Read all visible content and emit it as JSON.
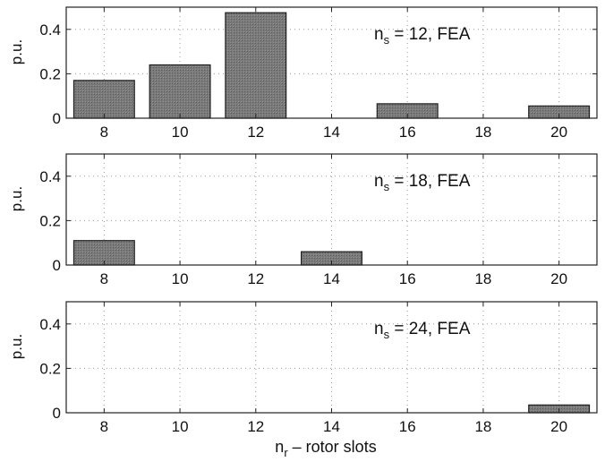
{
  "chart_data": [
    {
      "type": "bar",
      "categories": [
        8,
        10,
        12,
        14,
        16,
        18,
        20
      ],
      "x_ticks": [
        "8",
        "10",
        "12",
        "14",
        "16",
        "18",
        "20"
      ],
      "y_ticks": [
        "0",
        "0.2",
        "0.4"
      ],
      "ylim": [
        0,
        0.5
      ],
      "ylabel": "p.u.",
      "annotation": {
        "main": "n",
        "sub": "s",
        "rest": " = 12, FEA"
      },
      "bars": [
        {
          "x": 8,
          "value": 0.17
        },
        {
          "x": 10,
          "value": 0.24
        },
        {
          "x": 12,
          "value": 0.475
        },
        {
          "x": 16,
          "value": 0.065
        },
        {
          "x": 20,
          "value": 0.055
        }
      ],
      "grid": true
    },
    {
      "type": "bar",
      "categories": [
        8,
        10,
        12,
        14,
        16,
        18,
        20
      ],
      "x_ticks": [
        "8",
        "10",
        "12",
        "14",
        "16",
        "18",
        "20"
      ],
      "y_ticks": [
        "0",
        "0.2",
        "0.4"
      ],
      "ylim": [
        0,
        0.5
      ],
      "ylabel": "p.u.",
      "annotation": {
        "main": "n",
        "sub": "s",
        "rest": " = 18, FEA"
      },
      "bars": [
        {
          "x": 8,
          "value": 0.11
        },
        {
          "x": 14,
          "value": 0.06
        }
      ],
      "grid": true
    },
    {
      "type": "bar",
      "categories": [
        8,
        10,
        12,
        14,
        16,
        18,
        20
      ],
      "x_ticks": [
        "8",
        "10",
        "12",
        "14",
        "16",
        "18",
        "20"
      ],
      "y_ticks": [
        "0",
        "0.2",
        "0.4"
      ],
      "ylim": [
        0,
        0.5
      ],
      "ylabel": "p.u.",
      "annotation": {
        "main": "n",
        "sub": "s",
        "rest": " = 24, FEA"
      },
      "bars": [
        {
          "x": 20,
          "value": 0.035
        }
      ],
      "grid": true
    }
  ],
  "xlabel": {
    "main": "n",
    "sub": "r",
    "rest": " – rotor slots"
  }
}
